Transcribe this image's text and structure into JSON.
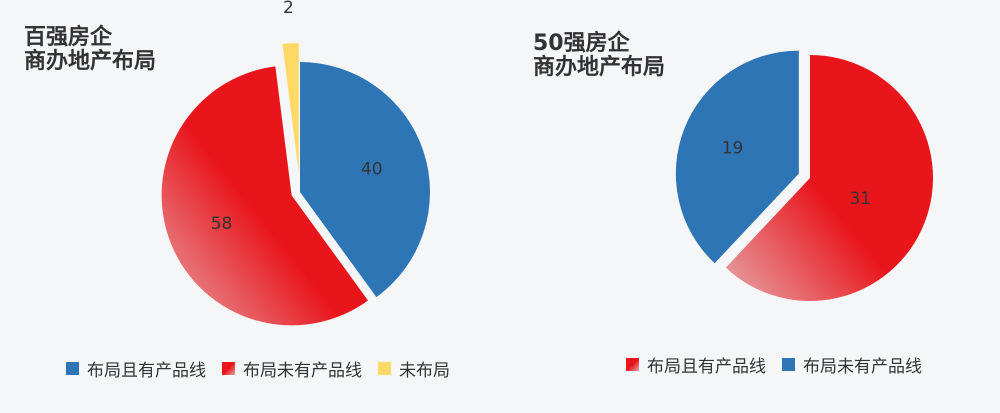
{
  "chart_data": [
    {
      "type": "pie",
      "title": "百强房企\n商办地产布局",
      "categories": [
        "布局且有产品线",
        "布局未有产品线",
        "未布局"
      ],
      "values": [
        40,
        58,
        2
      ],
      "colors": [
        "#2e75b6",
        "#e8151b",
        "#ffd966"
      ],
      "legend": "bottom"
    },
    {
      "type": "pie",
      "title": "50强房企\n商办地产布局",
      "categories": [
        "布局且有产品线",
        "布局未有产品线"
      ],
      "values": [
        31,
        19
      ],
      "colors": [
        "#e8151b",
        "#2e75b6"
      ],
      "legend": "bottom"
    }
  ]
}
